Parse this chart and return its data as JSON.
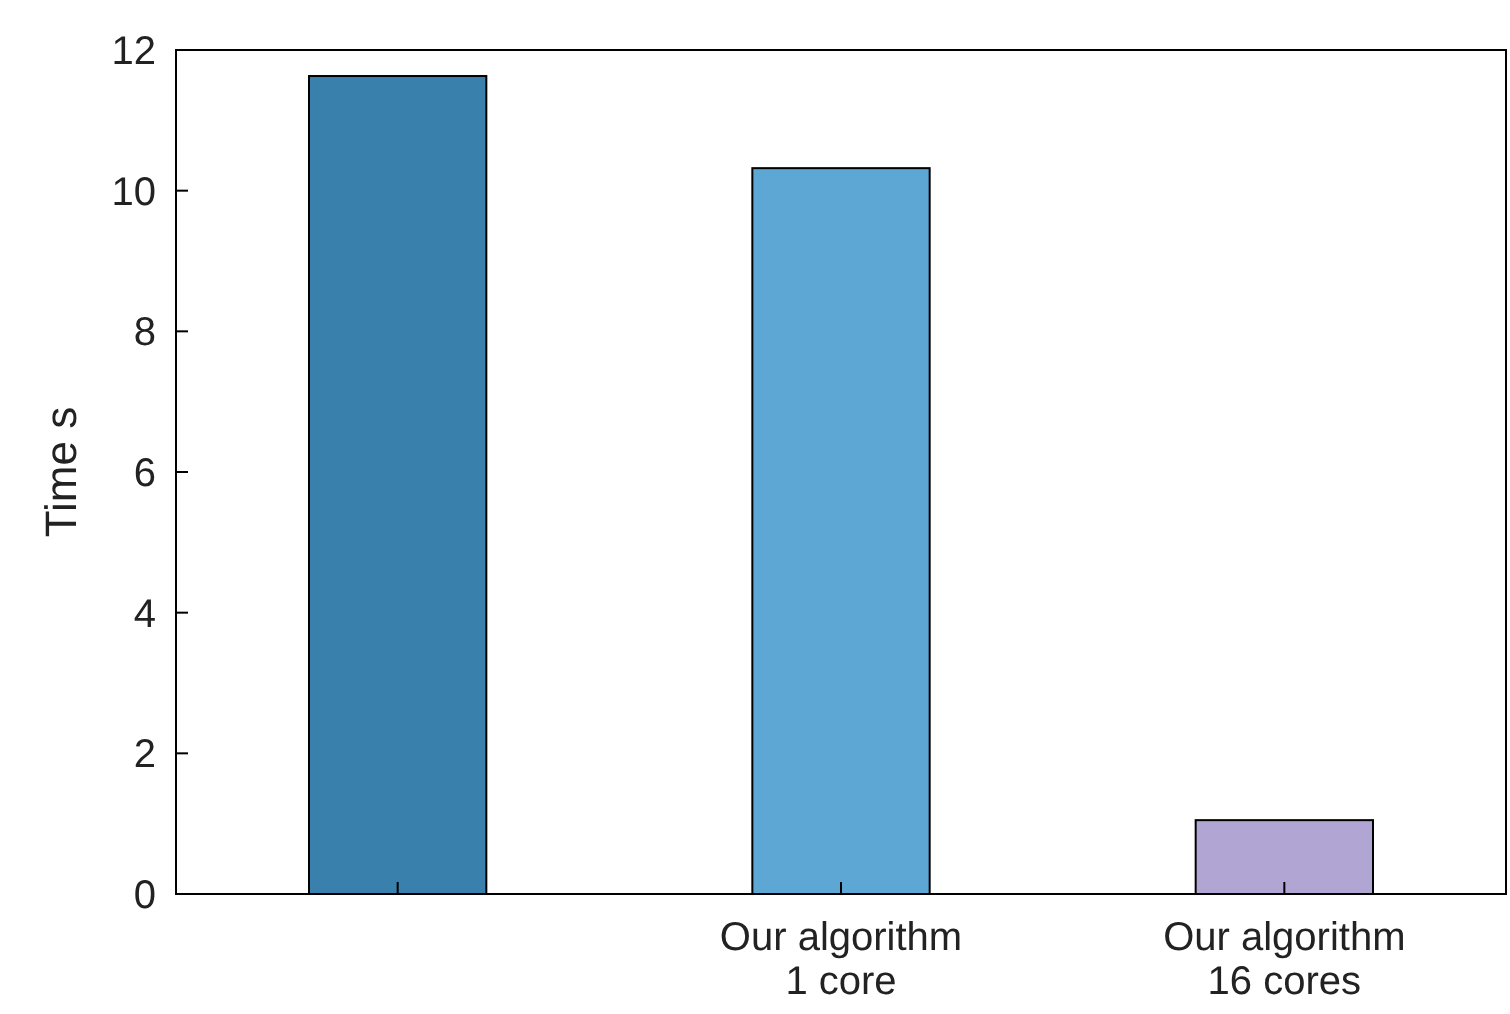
{
  "chart_data": {
    "type": "bar",
    "ylabel": "Time s",
    "categories": [
      null,
      "Our algorithm\n1 core",
      "Our algorithm\n16 cores"
    ],
    "values": [
      11.63,
      10.32,
      1.05
    ],
    "colors": [
      "#3a80ad",
      "#5ca7d3",
      "#b1a5d3"
    ],
    "ylim": [
      0,
      12
    ],
    "yticks": [
      0,
      2,
      4,
      6,
      8,
      10,
      12
    ],
    "grid": false
  }
}
